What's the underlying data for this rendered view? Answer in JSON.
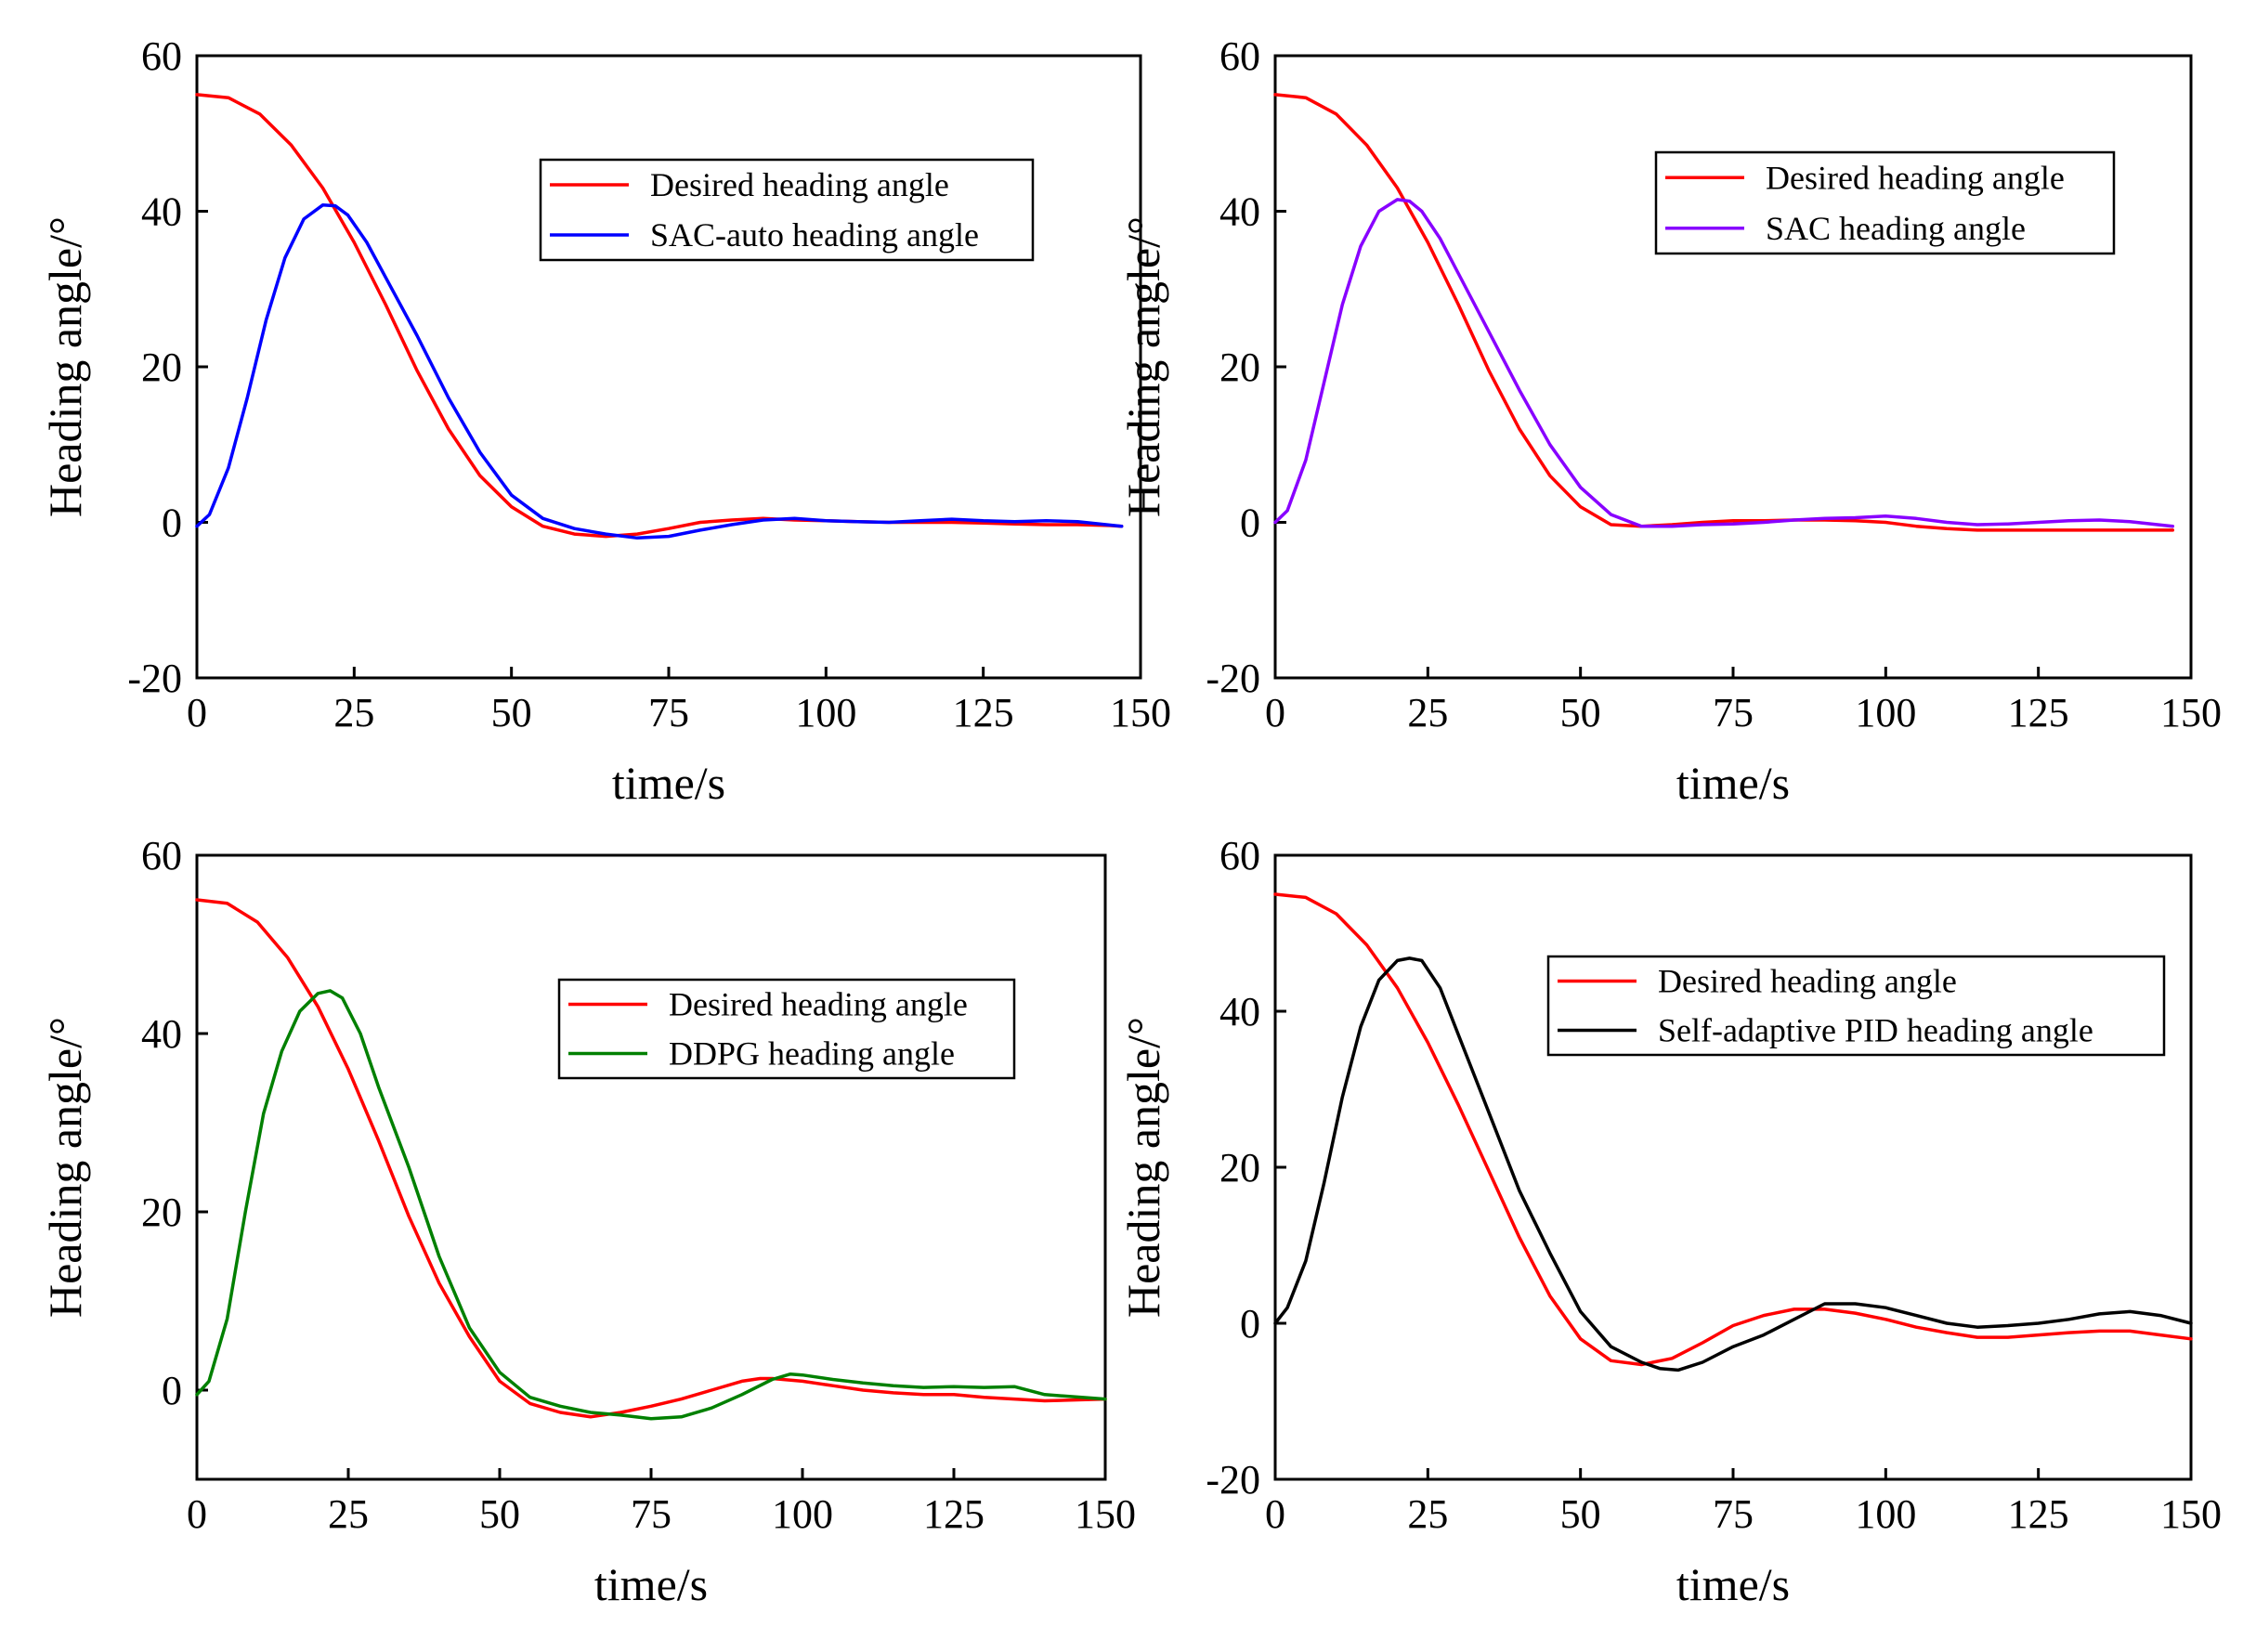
{
  "chart_data": [
    {
      "type": "line",
      "xlabel": "time/s",
      "ylabel": "Heading angle/°",
      "xlim": [
        0,
        150
      ],
      "ylim": [
        -20,
        60
      ],
      "xticks": [
        0,
        25,
        50,
        75,
        100,
        125,
        150
      ],
      "yticks": [
        -20,
        0,
        20,
        40,
        60
      ],
      "legend_position": "upper-right",
      "grid": false,
      "series": [
        {
          "name": "Desired heading angle",
          "color": "#ff0000",
          "x": [
            0,
            5,
            10,
            15,
            20,
            25,
            30,
            35,
            40,
            45,
            50,
            55,
            60,
            65,
            70,
            75,
            80,
            85,
            90,
            95,
            100,
            105,
            110,
            115,
            120,
            125,
            130,
            135,
            140,
            145,
            147
          ],
          "y": [
            55,
            54.6,
            52.5,
            48.5,
            43,
            36,
            28,
            19.5,
            12,
            6,
            2,
            -0.5,
            -1.5,
            -1.8,
            -1.5,
            -0.8,
            0,
            0.3,
            0.5,
            0.3,
            0.2,
            0.1,
            0,
            0,
            0,
            -0.1,
            -0.2,
            -0.3,
            -0.3,
            -0.4,
            -0.5
          ]
        },
        {
          "name": "SAC-auto heading angle",
          "color": "#0000ff",
          "x": [
            0,
            2,
            5,
            8,
            11,
            14,
            17,
            20,
            22,
            24,
            27,
            30,
            35,
            40,
            45,
            50,
            55,
            60,
            65,
            70,
            75,
            80,
            85,
            90,
            95,
            100,
            105,
            110,
            115,
            120,
            125,
            130,
            135,
            140,
            147
          ],
          "y": [
            -0.5,
            1,
            7,
            16,
            26,
            34,
            39,
            40.8,
            40.7,
            39.5,
            36,
            31.5,
            24,
            16,
            9,
            3.5,
            0.5,
            -0.8,
            -1.5,
            -2,
            -1.8,
            -1,
            -0.3,
            0.3,
            0.5,
            0.2,
            0.1,
            0,
            0.2,
            0.4,
            0.2,
            0.1,
            0.2,
            0.1,
            -0.5
          ]
        }
      ]
    },
    {
      "type": "line",
      "xlabel": "time/s",
      "ylabel": "Heading angle/°",
      "xlim": [
        0,
        150
      ],
      "ylim": [
        -20,
        60
      ],
      "xticks": [
        0,
        25,
        50,
        75,
        100,
        125,
        150
      ],
      "yticks": [
        -20,
        0,
        20,
        40,
        60
      ],
      "legend_position": "upper-right",
      "grid": false,
      "series": [
        {
          "name": "Desired heading angle",
          "color": "#ff0000",
          "x": [
            0,
            5,
            10,
            15,
            20,
            25,
            30,
            35,
            40,
            45,
            50,
            55,
            60,
            65,
            70,
            75,
            80,
            85,
            90,
            95,
            100,
            105,
            110,
            115,
            120,
            125,
            130,
            135,
            140,
            147
          ],
          "y": [
            55,
            54.6,
            52.5,
            48.5,
            43,
            36,
            28,
            19.5,
            12,
            6,
            2,
            -0.3,
            -0.5,
            -0.3,
            0,
            0.2,
            0.2,
            0.3,
            0.3,
            0.2,
            0,
            -0.5,
            -0.8,
            -1,
            -1,
            -1,
            -1,
            -1,
            -1,
            -1
          ]
        },
        {
          "name": "SAC heading angle",
          "color": "#8800ff",
          "x": [
            0,
            2,
            5,
            8,
            11,
            14,
            17,
            20,
            22,
            24,
            27,
            30,
            35,
            40,
            45,
            50,
            55,
            60,
            65,
            70,
            75,
            80,
            85,
            90,
            95,
            100,
            105,
            110,
            115,
            120,
            125,
            130,
            135,
            140,
            147
          ],
          "y": [
            0,
            1.5,
            8,
            18,
            28,
            35.5,
            40,
            41.5,
            41.3,
            40,
            36.5,
            32,
            24.5,
            17,
            10,
            4.5,
            1,
            -0.5,
            -0.5,
            -0.3,
            -0.2,
            0,
            0.3,
            0.5,
            0.6,
            0.8,
            0.5,
            0,
            -0.3,
            -0.2,
            0,
            0.2,
            0.3,
            0.1,
            -0.5
          ]
        }
      ]
    },
    {
      "type": "line",
      "xlabel": "time/s",
      "ylabel": "Heading angle/°",
      "xlim": [
        0,
        150
      ],
      "ylim": [
        -10,
        60
      ],
      "xticks": [
        0,
        25,
        50,
        75,
        100,
        125,
        150
      ],
      "yticks": [
        0,
        20,
        40,
        60
      ],
      "legend_position": "upper-right",
      "grid": false,
      "series": [
        {
          "name": "Desired heading angle",
          "color": "#ff0000",
          "x": [
            0,
            5,
            10,
            15,
            20,
            25,
            30,
            35,
            40,
            45,
            50,
            55,
            60,
            65,
            70,
            75,
            80,
            85,
            90,
            93,
            95,
            100,
            105,
            110,
            115,
            120,
            125,
            130,
            135,
            140,
            150
          ],
          "y": [
            55,
            54.6,
            52.5,
            48.5,
            43,
            36,
            28,
            19.5,
            12,
            6,
            1,
            -1.5,
            -2.5,
            -3,
            -2.5,
            -1.8,
            -1,
            0,
            1,
            1.3,
            1.3,
            1,
            0.5,
            0,
            -0.3,
            -0.5,
            -0.5,
            -0.8,
            -1,
            -1.2,
            -1
          ]
        },
        {
          "name": "DDPG heading angle",
          "color": "#008000",
          "x": [
            0,
            2,
            5,
            8,
            11,
            14,
            17,
            20,
            22,
            24,
            27,
            30,
            35,
            40,
            45,
            50,
            55,
            60,
            65,
            70,
            75,
            80,
            85,
            90,
            95,
            98,
            100,
            105,
            110,
            115,
            120,
            125,
            130,
            135,
            140,
            150
          ],
          "y": [
            -0.5,
            1,
            8,
            20,
            31,
            38,
            42.5,
            44.5,
            44.8,
            44,
            40,
            34,
            25,
            15,
            7,
            2,
            -0.8,
            -1.8,
            -2.5,
            -2.8,
            -3.2,
            -3,
            -2,
            -0.5,
            1.2,
            1.8,
            1.7,
            1.2,
            0.8,
            0.5,
            0.3,
            0.4,
            0.3,
            0.4,
            -0.5,
            -1
          ]
        }
      ]
    },
    {
      "type": "line",
      "xlabel": "time/s",
      "ylabel": "Heading angle/°",
      "xlim": [
        0,
        150
      ],
      "ylim": [
        -20,
        60
      ],
      "xticks": [
        0,
        25,
        50,
        75,
        100,
        125,
        150
      ],
      "yticks": [
        -20,
        0,
        20,
        40,
        60
      ],
      "legend_position": "upper-right",
      "grid": false,
      "series": [
        {
          "name": "Desired heading angle",
          "color": "#ff0000",
          "x": [
            0,
            5,
            10,
            15,
            20,
            25,
            30,
            35,
            40,
            45,
            50,
            55,
            60,
            65,
            70,
            75,
            80,
            85,
            90,
            95,
            100,
            105,
            110,
            115,
            120,
            125,
            130,
            135,
            140,
            145,
            150
          ],
          "y": [
            55,
            54.6,
            52.5,
            48.5,
            43,
            36,
            28,
            19.5,
            11,
            3.5,
            -2,
            -4.8,
            -5.3,
            -4.5,
            -2.5,
            -0.3,
            1,
            1.8,
            1.8,
            1.3,
            0.5,
            -0.5,
            -1.2,
            -1.8,
            -1.8,
            -1.5,
            -1.2,
            -1,
            -1,
            -1.5,
            -2
          ]
        },
        {
          "name": "Self-adaptive PID  heading angle",
          "color": "#000000",
          "x": [
            0,
            2,
            5,
            8,
            11,
            14,
            17,
            20,
            22,
            24,
            27,
            30,
            35,
            40,
            45,
            50,
            55,
            60,
            63,
            66,
            70,
            75,
            80,
            85,
            90,
            95,
            100,
            105,
            110,
            115,
            120,
            125,
            130,
            135,
            140,
            145,
            150
          ],
          "y": [
            0,
            2,
            8,
            18,
            29,
            38,
            44,
            46.5,
            46.8,
            46.5,
            43,
            37,
            27,
            17,
            9,
            1.5,
            -3,
            -5,
            -5.8,
            -6,
            -5,
            -3,
            -1.5,
            0.5,
            2.5,
            2.5,
            2,
            1,
            0,
            -0.5,
            -0.3,
            0,
            0.5,
            1.2,
            1.5,
            1,
            0
          ]
        }
      ]
    }
  ]
}
